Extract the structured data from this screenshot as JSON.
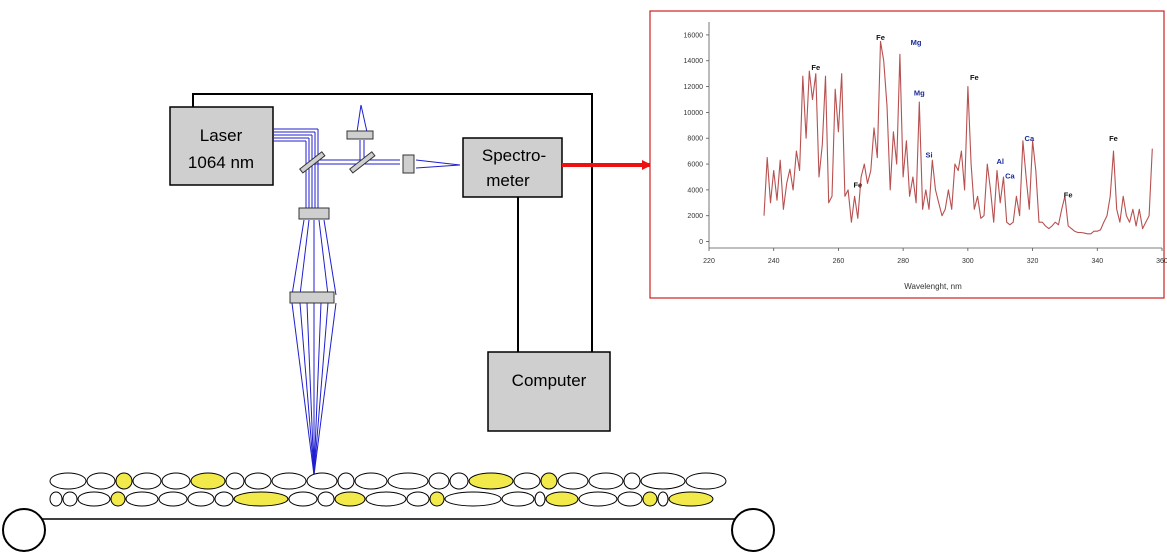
{
  "diagram": {
    "laser": {
      "line1": "Laser",
      "line2": "1064 nm"
    },
    "spectrometer": {
      "line1": "Spectro-",
      "line2": "meter"
    },
    "computer": {
      "label": "Computer"
    },
    "colors": {
      "beam": "#1f1fd0",
      "arrow": "#ee1111",
      "box_fill": "#cfcfcf",
      "mineral": "#f2ea4a",
      "frame": "#cc2222",
      "spectrum": "#b85050",
      "iron_label": "#111111",
      "other_label": "#1a2a9a"
    }
  },
  "chart_data": {
    "type": "line",
    "title": "",
    "xlabel": "Wavelenght, nm",
    "ylabel": "",
    "xlim": [
      220,
      360
    ],
    "ylim": [
      -500,
      17000
    ],
    "x_ticks": [
      220,
      240,
      260,
      280,
      300,
      320,
      340,
      360
    ],
    "y_ticks": [
      0,
      2000,
      4000,
      6000,
      8000,
      10000,
      12000,
      14000,
      16000
    ],
    "series": [
      {
        "x": [
          237,
          238,
          239,
          240,
          241,
          242,
          243,
          244,
          245,
          246,
          247,
          248,
          249,
          250,
          251,
          252,
          253,
          254,
          255,
          256,
          257,
          258,
          259,
          260,
          261,
          262,
          263,
          264,
          265,
          266,
          267,
          268,
          269,
          270,
          271,
          272,
          273,
          274,
          275,
          276,
          277,
          278,
          279,
          280,
          281,
          282,
          283,
          284,
          285,
          286,
          287,
          288,
          289,
          290,
          291,
          292,
          293,
          294,
          295,
          296,
          297,
          298,
          299,
          300,
          301,
          302,
          303,
          304,
          305,
          306,
          307,
          308,
          309,
          310,
          311,
          312,
          313,
          314,
          315,
          316,
          317,
          318,
          319,
          320,
          321,
          322,
          323,
          324,
          325,
          326,
          327,
          328,
          329,
          330,
          331,
          332,
          333,
          334,
          335,
          336,
          337,
          338,
          339,
          340,
          341,
          342,
          343,
          344,
          345,
          346,
          347,
          348,
          349,
          350,
          351,
          352,
          353,
          354,
          355,
          356,
          357
        ],
        "y": [
          2000,
          6500,
          3000,
          5500,
          3200,
          6300,
          2500,
          4500,
          5600,
          4000,
          7000,
          5500,
          12800,
          8000,
          13200,
          11000,
          13000,
          5000,
          7500,
          12800,
          3000,
          3500,
          11800,
          8500,
          13000,
          3500,
          4000,
          1500,
          3500,
          1800,
          5000,
          6000,
          4500,
          5500,
          8800,
          6500,
          15500,
          14000,
          10500,
          4000,
          8500,
          6000,
          14500,
          5000,
          7800,
          3500,
          5000,
          3000,
          10800,
          2500,
          4000,
          2500,
          6300,
          4000,
          3000,
          2000,
          2500,
          4000,
          2500,
          6000,
          5500,
          7000,
          4000,
          12000,
          6000,
          2500,
          3500,
          1800,
          2000,
          6000,
          4000,
          1500,
          5500,
          3000,
          5000,
          1500,
          1300,
          1500,
          3500,
          2000,
          7800,
          5000,
          2500,
          7800,
          5500,
          1500,
          1500,
          1200,
          1000,
          1200,
          1500,
          1300,
          2500,
          3500,
          1200,
          1000,
          800,
          700,
          700,
          650,
          600,
          600,
          800,
          800,
          900,
          1500,
          2000,
          3500,
          7000,
          2500,
          1500,
          3500,
          2000,
          1500,
          2500,
          1200,
          2500,
          1000,
          1500,
          2000,
          7200
        ]
      }
    ],
    "annotations": [
      {
        "text": "Fe",
        "x": 253,
        "y": 13300,
        "kind": "iron"
      },
      {
        "text": "Fe",
        "x": 266,
        "y": 4200,
        "kind": "iron"
      },
      {
        "text": "Fe",
        "x": 273,
        "y": 15600,
        "kind": "iron"
      },
      {
        "text": "Mg",
        "x": 284,
        "y": 15200,
        "kind": "other"
      },
      {
        "text": "Mg",
        "x": 285,
        "y": 11300,
        "kind": "other"
      },
      {
        "text": "Si",
        "x": 288,
        "y": 6500,
        "kind": "other"
      },
      {
        "text": "Fe",
        "x": 302,
        "y": 12500,
        "kind": "iron"
      },
      {
        "text": "Al",
        "x": 310,
        "y": 6000,
        "kind": "other"
      },
      {
        "text": "Ca",
        "x": 313,
        "y": 4900,
        "kind": "other"
      },
      {
        "text": "Ca",
        "x": 319,
        "y": 7800,
        "kind": "other"
      },
      {
        "text": "Fe",
        "x": 331,
        "y": 3400,
        "kind": "iron"
      },
      {
        "text": "Fe",
        "x": 345,
        "y": 7800,
        "kind": "iron"
      }
    ]
  }
}
